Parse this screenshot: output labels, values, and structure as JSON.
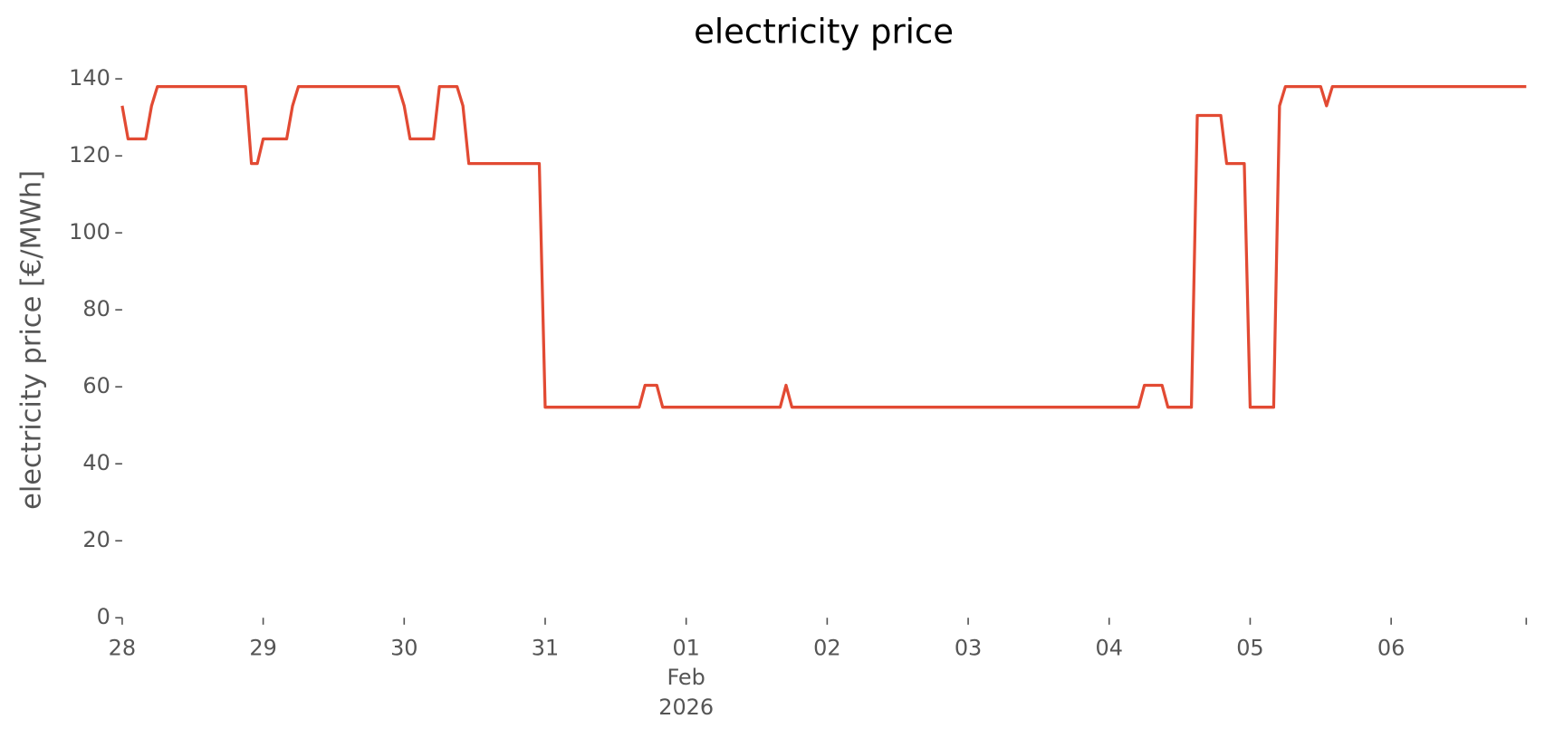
{
  "chart_data": {
    "type": "line",
    "title": "electricity price",
    "y_label": "electricity price [€/MWh]",
    "x": [
      "2026-01-28T00:00",
      "2026-01-28T01:00",
      "2026-01-28T04:00",
      "2026-01-28T05:00",
      "2026-01-28T06:00",
      "2026-01-28T21:00",
      "2026-01-28T22:00",
      "2026-01-28T23:00",
      "2026-01-29T00:00",
      "2026-01-29T04:00",
      "2026-01-29T05:00",
      "2026-01-29T06:00",
      "2026-01-29T23:00",
      "2026-01-30T00:00",
      "2026-01-30T01:00",
      "2026-01-30T05:00",
      "2026-01-30T06:00",
      "2026-01-30T09:00",
      "2026-01-30T10:00",
      "2026-01-30T11:00",
      "2026-01-30T23:00",
      "2026-01-31T00:00",
      "2026-01-31T16:00",
      "2026-01-31T17:00",
      "2026-01-31T19:00",
      "2026-01-31T20:00",
      "2026-02-01T16:00",
      "2026-02-01T17:00",
      "2026-02-01T18:00",
      "2026-02-04T05:00",
      "2026-02-04T06:00",
      "2026-02-04T09:00",
      "2026-02-04T10:00",
      "2026-02-04T14:00",
      "2026-02-04T15:00",
      "2026-02-04T19:00",
      "2026-02-04T20:00",
      "2026-02-04T23:00",
      "2026-02-05T00:00",
      "2026-02-05T04:00",
      "2026-02-05T05:00",
      "2026-02-05T06:00",
      "2026-02-05T12:00",
      "2026-02-05T13:00",
      "2026-02-05T14:00",
      "2026-02-06T23:00"
    ],
    "series": [
      {
        "name": "electricity price",
        "color": "#E24A33",
        "values": [
          133,
          124.4,
          124.4,
          133,
          138,
          138,
          118,
          118,
          124.4,
          124.4,
          133,
          138,
          138,
          133,
          124.4,
          124.4,
          138,
          138,
          133,
          118,
          118,
          54.7,
          54.7,
          60.4,
          60.4,
          54.7,
          54.7,
          60.4,
          54.7,
          54.7,
          60.4,
          60.4,
          54.7,
          54.7,
          130.5,
          130.5,
          118,
          118,
          54.7,
          54.7,
          133,
          138,
          138,
          133,
          138,
          138
        ]
      }
    ],
    "xlim": [
      "2026-01-28T00:00",
      "2026-02-06T23:00"
    ],
    "xticks": [
      {
        "value": "2026-01-28T00:00",
        "label": "28"
      },
      {
        "value": "2026-01-29T00:00",
        "label": "29"
      },
      {
        "value": "2026-01-30T00:00",
        "label": "30"
      },
      {
        "value": "2026-01-31T00:00",
        "label": "31"
      },
      {
        "value": "2026-02-01T00:00",
        "label": "01\nFeb\n2026"
      },
      {
        "value": "2026-02-02T00:00",
        "label": "02"
      },
      {
        "value": "2026-02-03T00:00",
        "label": "03"
      },
      {
        "value": "2026-02-04T00:00",
        "label": "04"
      },
      {
        "value": "2026-02-05T00:00",
        "label": "05"
      },
      {
        "value": "2026-02-06T00:00",
        "label": "06"
      }
    ],
    "ylim": [
      0,
      140
    ],
    "yticks": [
      0,
      20,
      40,
      60,
      80,
      100,
      120,
      140
    ],
    "grid": false
  }
}
